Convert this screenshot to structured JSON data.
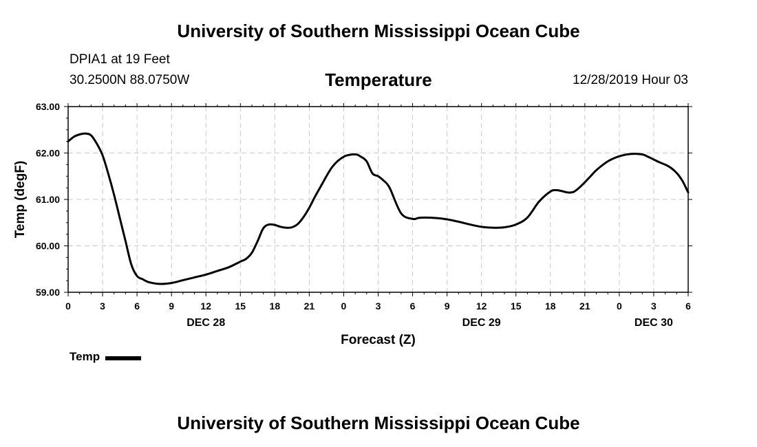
{
  "header": {
    "site_title": "University of Southern Mississippi Ocean Cube",
    "station": "DPIA1 at 19 Feet",
    "coordinates": "30.2500N 88.0750W",
    "run_time": "12/28/2019 Hour 03"
  },
  "footer": {
    "site_title": "University of Southern Mississippi Ocean Cube"
  },
  "legend": {
    "label": "Temp",
    "color": "#000000"
  },
  "chart_data": {
    "type": "line",
    "title": "Temperature",
    "xlabel": "Forecast (Z)",
    "ylabel": "Temp (degF)",
    "xlim": [
      0,
      54
    ],
    "ylim": [
      59.0,
      63.0
    ],
    "grid": true,
    "x_ticks": [
      0,
      3,
      6,
      9,
      12,
      15,
      18,
      21,
      24,
      27,
      30,
      33,
      36,
      39,
      42,
      45,
      48,
      51,
      54
    ],
    "x_tick_labels": [
      "0",
      "3",
      "6",
      "9",
      "12",
      "15",
      "18",
      "21",
      "0",
      "3",
      "6",
      "9",
      "12",
      "15",
      "18",
      "21",
      "0",
      "3",
      "6"
    ],
    "date_labels": [
      {
        "x": 12,
        "label": "DEC 28"
      },
      {
        "x": 36,
        "label": "DEC 29"
      },
      {
        "x": 51,
        "label": "DEC 30"
      }
    ],
    "y_ticks": [
      59.0,
      60.0,
      61.0,
      62.0,
      63.0
    ],
    "y_tick_labels": [
      "59.00",
      "60.00",
      "61.00",
      "62.00",
      "63.00"
    ],
    "series": [
      {
        "name": "Temp",
        "x": [
          0,
          0.5,
          1,
          1.5,
          2,
          2.5,
          3,
          3.5,
          4,
          4.5,
          5,
          5.5,
          6,
          6.5,
          7,
          8,
          9,
          10,
          11,
          12,
          13,
          14,
          15,
          15.5,
          16,
          16.5,
          17,
          17.5,
          18,
          18.5,
          19,
          19.5,
          20,
          20.5,
          21,
          21.5,
          22,
          23,
          24,
          25,
          25.5,
          26,
          26.5,
          27,
          27.5,
          28,
          29,
          30,
          30.5,
          31,
          32,
          33,
          34,
          35,
          36,
          37,
          38,
          39,
          40,
          41,
          42,
          42.5,
          43,
          43.5,
          44,
          44.5,
          45,
          45.5,
          46,
          47,
          48,
          49,
          50,
          50.5,
          51,
          51.5,
          52,
          52.5,
          53,
          53.5,
          54
        ],
        "values": [
          62.25,
          62.35,
          62.4,
          62.42,
          62.38,
          62.2,
          61.95,
          61.55,
          61.1,
          60.6,
          60.1,
          59.6,
          59.35,
          59.28,
          59.22,
          59.18,
          59.2,
          59.26,
          59.32,
          59.38,
          59.46,
          59.54,
          59.66,
          59.72,
          59.85,
          60.1,
          60.38,
          60.46,
          60.45,
          60.41,
          60.39,
          60.4,
          60.47,
          60.62,
          60.82,
          61.06,
          61.28,
          61.7,
          61.92,
          61.97,
          61.92,
          61.82,
          61.56,
          61.5,
          61.4,
          61.25,
          60.7,
          60.58,
          60.6,
          60.61,
          60.6,
          60.57,
          60.52,
          60.46,
          60.41,
          60.39,
          60.4,
          60.46,
          60.61,
          60.95,
          61.17,
          61.2,
          61.18,
          61.15,
          61.16,
          61.25,
          61.37,
          61.5,
          61.63,
          61.82,
          61.93,
          61.98,
          61.97,
          61.92,
          61.86,
          61.8,
          61.75,
          61.68,
          61.57,
          61.4,
          61.15
        ]
      }
    ]
  }
}
